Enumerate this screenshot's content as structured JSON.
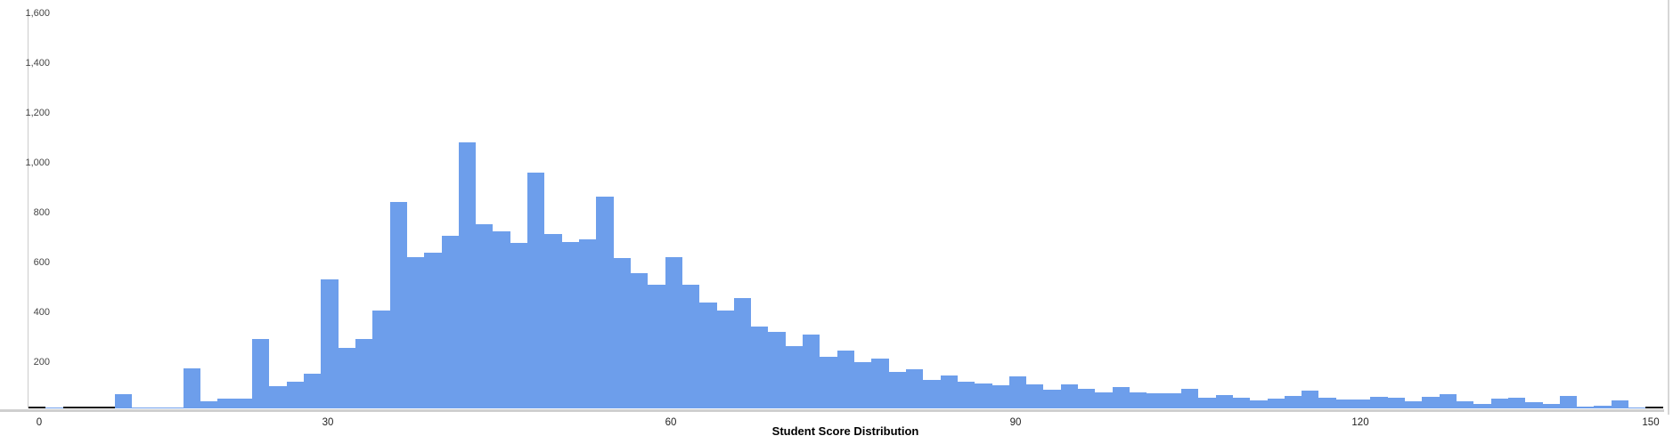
{
  "title": "Student Score Distribution",
  "colors": {
    "bar": "#6d9eeb",
    "zero_baseline": "#111111",
    "axis_line": "#cfcfcf",
    "y_tick_text": "#444444",
    "x_tick_text": "#222222",
    "title_text": "#000000"
  },
  "y_axis": {
    "ticks": [
      200,
      400,
      600,
      800,
      1000,
      1200,
      1400,
      1600
    ]
  },
  "x_axis": {
    "ticks": [
      0,
      30,
      60,
      90,
      120,
      150
    ]
  },
  "chart_data": {
    "type": "bar",
    "subtype": "histogram",
    "title": "Student Score Distribution",
    "xlabel": "",
    "ylabel": "",
    "xlim": [
      0,
      150
    ],
    "ylim": [
      0,
      1600
    ],
    "grid": false,
    "legend": "none",
    "x_first_bucket_start": 3.9,
    "bucket_width": 1.5,
    "note": "zero-count buckets show a thin black baseline segment",
    "counts": [
      0,
      8,
      0,
      0,
      0,
      70,
      10,
      10,
      10,
      175,
      43,
      52,
      52,
      292,
      102,
      120,
      152,
      530,
      256,
      292,
      408,
      842,
      620,
      640,
      707,
      1082,
      754,
      726,
      679,
      962,
      714,
      682,
      694,
      863,
      619,
      555,
      510,
      620,
      510,
      440,
      408,
      458,
      343,
      321,
      265,
      310,
      220,
      245,
      200,
      215,
      160,
      172,
      129,
      146,
      119,
      113,
      105,
      143,
      110,
      89,
      111,
      93,
      79,
      99,
      79,
      74,
      73,
      91,
      57,
      68,
      55,
      46,
      52,
      62,
      84,
      57,
      50,
      48,
      60,
      57,
      43,
      59,
      71,
      43,
      33,
      51,
      57,
      39,
      31,
      64,
      21,
      25,
      46,
      8,
      0
    ]
  }
}
